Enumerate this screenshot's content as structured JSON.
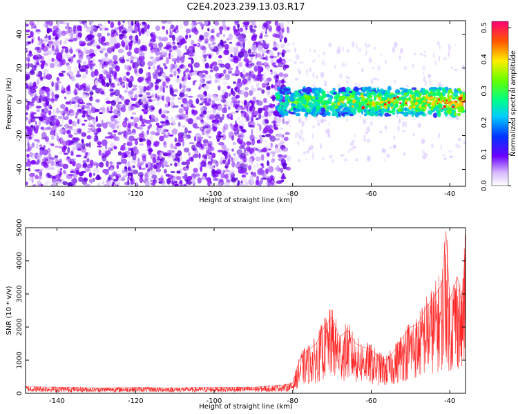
{
  "title": "C2E4.2023.239.13.03.R17",
  "chart_data": [
    {
      "type": "heatmap",
      "xlabel": "Height of straight line (km)",
      "ylabel": "Frequency (Hz)",
      "xlim": [
        -148,
        -36
      ],
      "ylim": [
        -50,
        48
      ],
      "xticks": [
        -140,
        -120,
        -100,
        -80,
        -60,
        -40
      ],
      "yticks": [
        -40,
        -20,
        0,
        20,
        40
      ],
      "noise_region_x": [
        -148,
        -81
      ],
      "signal_region_x": [
        -84,
        -36
      ],
      "signal_band_freq_hz": [
        -8,
        8
      ],
      "colorbar": {
        "label": "Normalized spectral amplitude",
        "range": [
          0.0,
          0.52
        ],
        "ticks": [
          0.0,
          0.1,
          0.2,
          0.3,
          0.4,
          0.5
        ]
      }
    },
    {
      "type": "line",
      "xlabel": "Height of straight line (km)",
      "ylabel": "SNR (10 * v/v)",
      "xlim": [
        -148,
        -36
      ],
      "ylim": [
        0,
        5000
      ],
      "xticks": [
        -140,
        -120,
        -100,
        -80,
        -60,
        -40
      ],
      "yticks": [
        0,
        1000,
        2000,
        3000,
        4000,
        5000
      ],
      "color": "#ff0000",
      "series": [
        {
          "x": [
            -148,
            -140,
            -130,
            -120,
            -110,
            -100,
            -90,
            -82,
            -80,
            -78,
            -76,
            -74,
            -72,
            -70,
            -68,
            -66,
            -64,
            -62,
            -60,
            -58,
            -56,
            -54,
            -52,
            -50,
            -48,
            -46,
            -44,
            -42,
            -41,
            -40,
            -39,
            -38,
            -37,
            -36
          ],
          "values": [
            200,
            180,
            160,
            170,
            160,
            170,
            180,
            250,
            300,
            1100,
            1300,
            1500,
            2000,
            2300,
            1700,
            1900,
            1500,
            1400,
            1300,
            1100,
            1000,
            1300,
            1700,
            2000,
            2100,
            2600,
            2900,
            3300,
            4900,
            2800,
            3200,
            3500,
            2700,
            4400
          ]
        }
      ]
    }
  ]
}
